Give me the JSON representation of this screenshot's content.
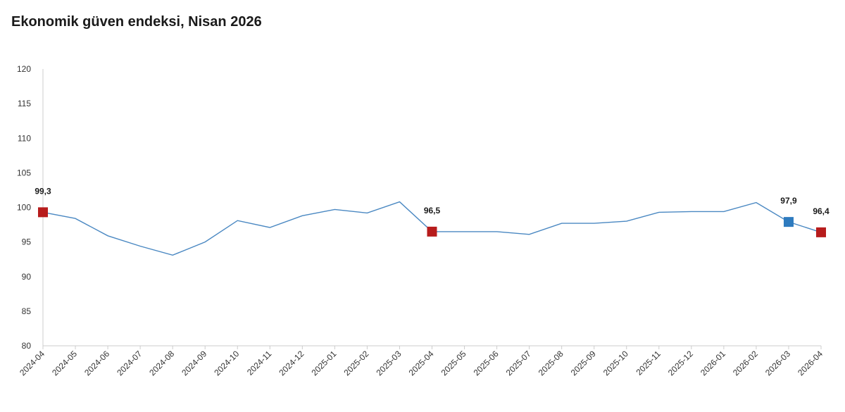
{
  "title": "Ekonomik güven endeksi, Nisan 2026",
  "colors": {
    "line": "#4a88c2",
    "marker_red": "#b71c1c",
    "marker_blue": "#2e7bbf",
    "axis": "#cccccc",
    "text": "#333333"
  },
  "chart_data": {
    "type": "line",
    "title": "Ekonomik güven endeksi, Nisan 2026",
    "categories": [
      "2024-04",
      "2024-05",
      "2024-06",
      "2024-07",
      "2024-08",
      "2024-09",
      "2024-10",
      "2024-11",
      "2024-12",
      "2025-01",
      "2025-02",
      "2025-03",
      "2025-04",
      "2025-05",
      "2025-06",
      "2025-07",
      "2025-08",
      "2025-09",
      "2025-10",
      "2025-11",
      "2025-12",
      "2026-01",
      "2026-02",
      "2026-03",
      "2026-04"
    ],
    "series": [
      {
        "values": [
          99.3,
          98.4,
          95.9,
          94.4,
          93.1,
          95.0,
          98.1,
          97.1,
          98.8,
          99.7,
          99.2,
          100.8,
          96.5,
          96.5,
          96.5,
          96.1,
          97.7,
          97.7,
          98.0,
          99.3,
          99.4,
          99.4,
          100.7,
          97.9,
          96.4
        ]
      }
    ],
    "highlights": [
      {
        "index": 0,
        "label": "99,3",
        "color": "#b71c1c"
      },
      {
        "index": 12,
        "label": "96,5",
        "color": "#b71c1c"
      },
      {
        "index": 23,
        "label": "97,9",
        "color": "#2e7bbf"
      },
      {
        "index": 24,
        "label": "96,4",
        "color": "#b71c1c"
      }
    ],
    "ylim": [
      80,
      120
    ],
    "yticks": [
      "80",
      "85",
      "90",
      "95",
      "100",
      "105",
      "110",
      "115",
      "120"
    ],
    "grid": false,
    "xlabel": "",
    "ylabel": ""
  }
}
